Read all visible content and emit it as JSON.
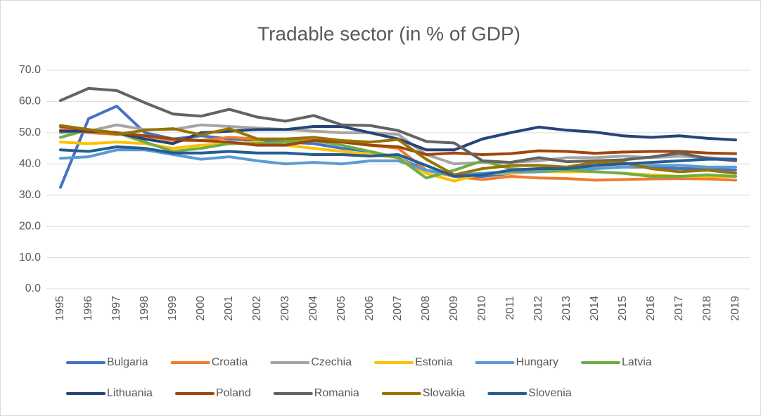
{
  "chart_data": {
    "type": "line",
    "title": "Tradable sector (in % of GDP)",
    "categories": [
      "1995",
      "1996",
      "1997",
      "1998",
      "1999",
      "2000",
      "2001",
      "2002",
      "2003",
      "2004",
      "2005",
      "2006",
      "2007",
      "2008",
      "2009",
      "2010",
      "2011",
      "2012",
      "2013",
      "2014",
      "2015",
      "2016",
      "2017",
      "2018",
      "2019"
    ],
    "ylim": [
      0,
      70
    ],
    "yticks": [
      {
        "value": 0,
        "label": "0.0"
      },
      {
        "value": 10,
        "label": "10.0"
      },
      {
        "value": 20,
        "label": "20.0"
      },
      {
        "value": 30,
        "label": "30.0"
      },
      {
        "value": 40,
        "label": "40.0"
      },
      {
        "value": 50,
        "label": "50.0"
      },
      {
        "value": 60,
        "label": "60.0"
      },
      {
        "value": 70,
        "label": "70.0"
      }
    ],
    "grid": true,
    "legend": "bottom",
    "series": [
      {
        "name": "Bulgaria",
        "color": "#4472c4",
        "values": [
          32.5,
          54.5,
          58.5,
          50,
          48,
          49,
          48,
          47.5,
          47,
          46.5,
          45,
          44,
          42,
          38,
          36,
          36,
          37,
          37.5,
          38,
          38.5,
          39,
          39,
          38.5,
          38.5,
          38
        ]
      },
      {
        "name": "Croatia",
        "color": "#ed7d31",
        "values": [
          51,
          50,
          49.5,
          49,
          47.5,
          47.5,
          48.5,
          48,
          48,
          47.5,
          47,
          46,
          45,
          38,
          36,
          35,
          36,
          35.5,
          35.3,
          34.8,
          35,
          35.2,
          35.3,
          35.2,
          34.8
        ]
      },
      {
        "name": "Czechia",
        "color": "#a5a5a5",
        "values": [
          50,
          50.5,
          52.5,
          51,
          51,
          52.5,
          52,
          51.5,
          51,
          50.5,
          50,
          50,
          49.5,
          43,
          40,
          40.5,
          40.5,
          41,
          42,
          42,
          42.5,
          42,
          42.5,
          42,
          41.5
        ]
      },
      {
        "name": "Estonia",
        "color": "#ffc000",
        "values": [
          47,
          46.5,
          47,
          46.5,
          45,
          46,
          46.5,
          47,
          46,
          45,
          44,
          43,
          42,
          37,
          34.5,
          37,
          37,
          37.5,
          37.5,
          37.5,
          37,
          36.5,
          36,
          36,
          36
        ]
      },
      {
        "name": "Hungary",
        "color": "#5b9bd5",
        "values": [
          41.8,
          42.3,
          44.5,
          44.5,
          43,
          41.5,
          42.3,
          41,
          40,
          40.5,
          40,
          41,
          41,
          38,
          36.5,
          37,
          37.5,
          37.5,
          38,
          38.5,
          39,
          39.5,
          39.5,
          39,
          39
        ]
      },
      {
        "name": "Latvia",
        "color": "#70ad47",
        "values": [
          48.5,
          51,
          50,
          47,
          44,
          45,
          46.5,
          46.5,
          47,
          47.5,
          46,
          44,
          42,
          35.5,
          38,
          41,
          38.5,
          38,
          38,
          37.5,
          37,
          36,
          36,
          36.5,
          36
        ]
      },
      {
        "name": "Lithuania",
        "color": "#264478",
        "values": [
          50.5,
          50.5,
          50,
          48,
          46.5,
          50,
          50.5,
          51,
          51,
          52,
          52,
          50,
          48,
          44.5,
          44.5,
          48,
          50,
          51.8,
          50.8,
          50.2,
          49,
          48.5,
          49,
          48.2,
          47.7
        ]
      },
      {
        "name": "Poland",
        "color": "#9e480e",
        "values": [
          52,
          50.8,
          50,
          49,
          48,
          47.5,
          47,
          46,
          46,
          47.5,
          47,
          46,
          45.5,
          43,
          43.5,
          43,
          43.3,
          44.2,
          44,
          43.4,
          43.8,
          44,
          44,
          43.5,
          43.3
        ]
      },
      {
        "name": "Romania",
        "color": "#636363",
        "values": [
          60.3,
          64.2,
          63.5,
          59.6,
          56,
          55.3,
          57.5,
          55,
          53.7,
          55.5,
          52.5,
          52.3,
          50.7,
          47.2,
          46.7,
          41,
          40.5,
          42,
          40.7,
          41,
          41.3,
          42.2,
          43.5,
          41.8,
          41
        ]
      },
      {
        "name": "Slovakia",
        "color": "#997300",
        "values": [
          52.3,
          51,
          49.5,
          50.8,
          51.3,
          49.3,
          51.3,
          48,
          48,
          48.5,
          47.5,
          47,
          47.8,
          41.5,
          36.5,
          38.5,
          39.5,
          39.5,
          39,
          40.5,
          40.5,
          38.5,
          37.5,
          38,
          37
        ]
      },
      {
        "name": "Slovenia",
        "color": "#255e91",
        "values": [
          44.5,
          44,
          45.5,
          45,
          43.5,
          43.5,
          44,
          43.5,
          43.5,
          43,
          43,
          42.5,
          43,
          39.5,
          36,
          36.5,
          38,
          38.5,
          38.5,
          39.5,
          40,
          40.5,
          41,
          41.5,
          41.5
        ]
      }
    ]
  }
}
